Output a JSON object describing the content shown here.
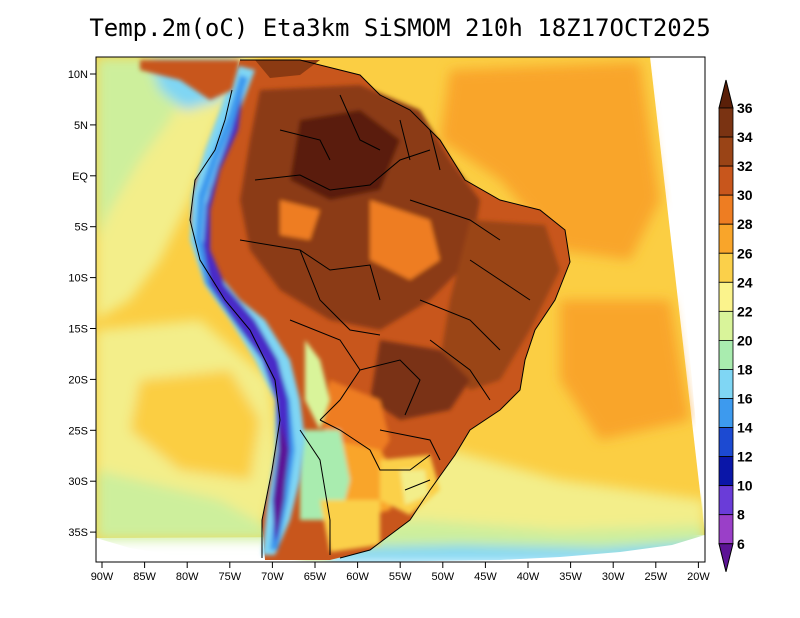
{
  "title": "Temp.2m(oC) Eta3km SiSMOM 210h 18Z17OCT2025",
  "lat_labels": [
    "10N",
    "5N",
    "EQ",
    "5S",
    "10S",
    "15S",
    "20S",
    "25S",
    "30S",
    "35S"
  ],
  "lon_labels": [
    "90W",
    "85W",
    "80W",
    "75W",
    "70W",
    "65W",
    "60W",
    "55W",
    "50W",
    "45W",
    "40W",
    "35W",
    "30W",
    "25W",
    "20W"
  ],
  "colorbar": {
    "labels": [
      "36",
      "34",
      "32",
      "30",
      "28",
      "26",
      "24",
      "22",
      "20",
      "18",
      "16",
      "14",
      "12",
      "10",
      "8",
      "6"
    ],
    "colors": [
      "#5a1f08",
      "#7a3312",
      "#9a4416",
      "#c8561c",
      "#ee7d22",
      "#f9a52a",
      "#fbd04a",
      "#fbf38c",
      "#d9f49a",
      "#a9ecaf",
      "#7fd6f4",
      "#3d9aee",
      "#1c4ad2",
      "#0a16a8",
      "#6a3cd8",
      "#9a3fc8",
      "#5c1495"
    ]
  },
  "colors": {
    "ocean_warm": "#fbce43",
    "ocean_mid": "#f3ee8a",
    "ocean_cool": "#cdef9c",
    "land_hot": "#8b3a12",
    "land_warm": "#e0712a",
    "andes_cold": "#4a2cc8",
    "andes_mid": "#7ecbf5",
    "border": "#000000"
  }
}
